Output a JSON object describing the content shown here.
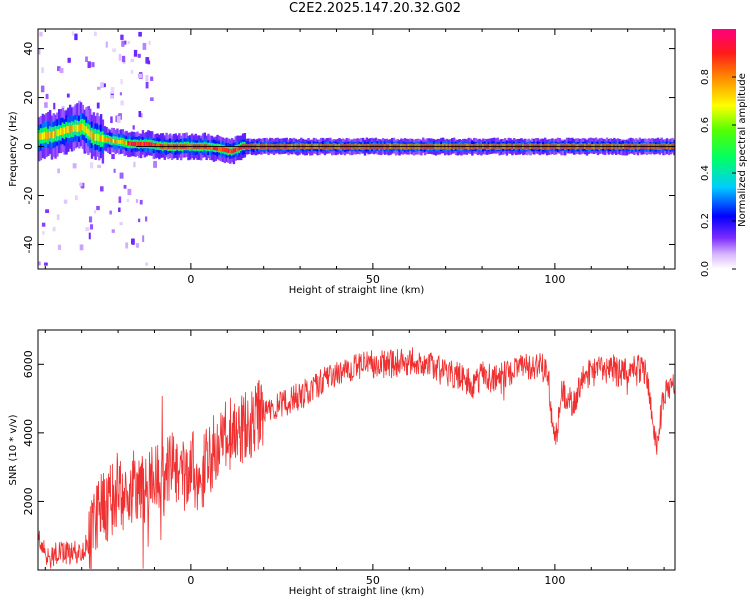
{
  "title": "C2E2.2025.147.20.32.G02",
  "chart_data": [
    {
      "type": "heatmap",
      "xlabel": "Height of straight line (km)",
      "ylabel": "Frequency (Hz)",
      "xlim": [
        -42,
        133
      ],
      "ylim": [
        -50,
        48
      ],
      "xticks": [
        0,
        50,
        100
      ],
      "yticks": [
        -40,
        -20,
        0,
        20,
        40
      ],
      "colorbar": {
        "label": "Normalized spectral amplitude",
        "range": [
          0,
          1
        ],
        "ticks": [
          "0.0",
          "0.2",
          "0.4",
          "0.6",
          "0.8"
        ],
        "colormap": "rainbow: white-lavender, blue, cyan, green, yellow, orange, red, magenta"
      },
      "ridge": {
        "x": [
          -42,
          -38,
          -34,
          -30,
          -27,
          -24,
          -20,
          -16,
          -12,
          -8,
          -4,
          0,
          4,
          8,
          11,
          14,
          18,
          25,
          40,
          60,
          80,
          100,
          120,
          133
        ],
        "frequency": [
          4,
          5,
          7,
          8,
          4,
          3,
          2,
          1,
          1,
          0,
          0,
          0,
          0,
          -1,
          -2,
          0,
          0,
          0,
          0,
          0,
          0,
          0,
          0,
          0
        ]
      },
      "grid": false
    },
    {
      "type": "line",
      "xlabel": "Height of straight line (km)",
      "ylabel": "SNR (10 * v/v)",
      "xlim": [
        -42,
        133
      ],
      "ylim": [
        0,
        7000
      ],
      "xticks": [
        0,
        50,
        100
      ],
      "yticks": [
        2000,
        4000,
        6000
      ],
      "series": [
        {
          "color": "#f03030",
          "x": [
            -42,
            -40,
            -37,
            -34,
            -31,
            -28,
            -26,
            -24,
            -22,
            -20,
            -18,
            -15,
            -12,
            -10,
            -8,
            -5,
            -2,
            0,
            3,
            6,
            10,
            15,
            20,
            25,
            30,
            35,
            40,
            45,
            50,
            55,
            60,
            65,
            70,
            75,
            78,
            80,
            83,
            86,
            90,
            95,
            98,
            100,
            102,
            105,
            108,
            112,
            115,
            118,
            122,
            125,
            128,
            130,
            133
          ],
          "y": [
            1000,
            500,
            450,
            500,
            500,
            800,
            1600,
            1800,
            2000,
            2400,
            2100,
            2500,
            2400,
            2700,
            2600,
            3000,
            2800,
            3000,
            2700,
            3500,
            3900,
            4200,
            4600,
            4800,
            5100,
            5400,
            5700,
            5900,
            6000,
            6000,
            6100,
            6000,
            5800,
            5600,
            5300,
            5800,
            5500,
            5700,
            5900,
            6000,
            5800,
            3600,
            5200,
            4800,
            5700,
            5800,
            6000,
            5700,
            5900,
            5800,
            3600,
            5200,
            5400
          ]
        }
      ],
      "grid": false
    }
  ]
}
